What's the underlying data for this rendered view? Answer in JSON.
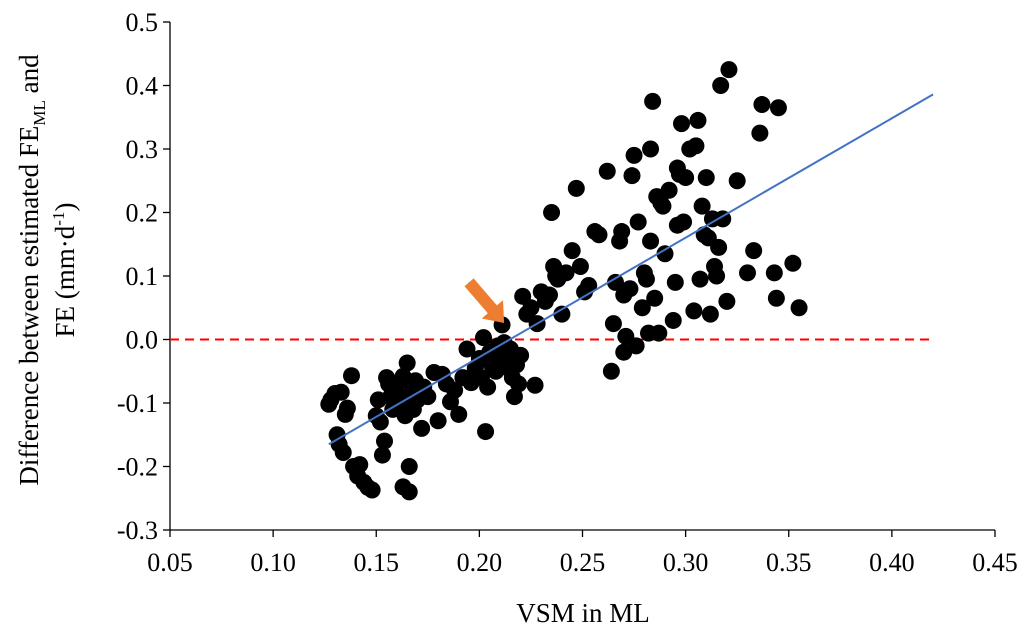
{
  "chart_data": {
    "type": "scatter",
    "xlabel": "VSM in ML",
    "ylabel_line1_parts": [
      "Difference between estimated FE",
      "ML",
      " and"
    ],
    "ylabel_line2_parts": [
      "FE (mm·d",
      "-1",
      ")"
    ],
    "xlim": [
      0.05,
      0.45
    ],
    "ylim": [
      -0.3,
      0.5
    ],
    "x_ticks": [
      0.05,
      0.1,
      0.15,
      0.2,
      0.25,
      0.3,
      0.35,
      0.4,
      0.45
    ],
    "x_tick_labels": [
      "0.05",
      "0.10",
      "0.15",
      "0.20",
      "0.25",
      "0.30",
      "0.35",
      "0.40",
      "0.45"
    ],
    "y_ticks": [
      -0.3,
      -0.2,
      -0.1,
      0.0,
      0.1,
      0.2,
      0.3,
      0.4,
      0.5
    ],
    "y_tick_labels": [
      "-0.3",
      "-0.2",
      "-0.1",
      "0.0",
      "0.1",
      "0.2",
      "0.3",
      "0.4",
      "0.5"
    ],
    "grid": false,
    "legend": "none",
    "colors": {
      "points": "#000000",
      "trend": "#4472C4",
      "zero_line": "#FF0000",
      "arrow": "#ED7D31"
    },
    "trend_line": {
      "x": [
        0.127,
        0.42
      ],
      "y": [
        -0.165,
        0.386
      ]
    },
    "reference_line": {
      "y": 0.0,
      "x": [
        0.05,
        0.42
      ],
      "style": "dashed"
    },
    "annotation_arrow": {
      "from": [
        0.195,
        0.09
      ],
      "to": [
        0.212,
        0.026
      ]
    },
    "points": [
      [
        0.127,
        -0.102
      ],
      [
        0.13,
        -0.085
      ],
      [
        0.128,
        -0.095
      ],
      [
        0.131,
        -0.15
      ],
      [
        0.132,
        -0.165
      ],
      [
        0.134,
        -0.178
      ],
      [
        0.133,
        -0.083
      ],
      [
        0.135,
        -0.118
      ],
      [
        0.136,
        -0.108
      ],
      [
        0.138,
        -0.057
      ],
      [
        0.139,
        -0.2
      ],
      [
        0.141,
        -0.215
      ],
      [
        0.142,
        -0.197
      ],
      [
        0.144,
        -0.225
      ],
      [
        0.146,
        -0.233
      ],
      [
        0.148,
        -0.237
      ],
      [
        0.15,
        -0.12
      ],
      [
        0.151,
        -0.095
      ],
      [
        0.152,
        -0.13
      ],
      [
        0.153,
        -0.182
      ],
      [
        0.154,
        -0.16
      ],
      [
        0.155,
        -0.06
      ],
      [
        0.156,
        -0.07
      ],
      [
        0.157,
        -0.09
      ],
      [
        0.158,
        -0.11
      ],
      [
        0.159,
        -0.075
      ],
      [
        0.16,
        -0.085
      ],
      [
        0.161,
        -0.1
      ],
      [
        0.162,
        -0.065
      ],
      [
        0.163,
        -0.058
      ],
      [
        0.163,
        -0.232
      ],
      [
        0.164,
        -0.12
      ],
      [
        0.165,
        -0.105
      ],
      [
        0.165,
        -0.037
      ],
      [
        0.166,
        -0.2
      ],
      [
        0.166,
        -0.24
      ],
      [
        0.167,
        -0.085
      ],
      [
        0.168,
        -0.11
      ],
      [
        0.169,
        -0.065
      ],
      [
        0.17,
        -0.095
      ],
      [
        0.172,
        -0.14
      ],
      [
        0.173,
        -0.075
      ],
      [
        0.175,
        -0.09
      ],
      [
        0.178,
        -0.052
      ],
      [
        0.18,
        -0.128
      ],
      [
        0.182,
        -0.055
      ],
      [
        0.184,
        -0.07
      ],
      [
        0.186,
        -0.098
      ],
      [
        0.188,
        -0.08
      ],
      [
        0.19,
        -0.118
      ],
      [
        0.192,
        -0.06
      ],
      [
        0.194,
        -0.015
      ],
      [
        0.196,
        -0.068
      ],
      [
        0.198,
        -0.045
      ],
      [
        0.2,
        -0.03
      ],
      [
        0.201,
        -0.06
      ],
      [
        0.202,
        0.003
      ],
      [
        0.203,
        -0.145
      ],
      [
        0.204,
        -0.075
      ],
      [
        0.205,
        -0.02
      ],
      [
        0.206,
        -0.04
      ],
      [
        0.208,
        -0.05
      ],
      [
        0.209,
        -0.01
      ],
      [
        0.21,
        -0.035
      ],
      [
        0.211,
        0.023
      ],
      [
        0.212,
        -0.005
      ],
      [
        0.213,
        -0.025
      ],
      [
        0.214,
        -0.045
      ],
      [
        0.215,
        -0.015
      ],
      [
        0.216,
        -0.06
      ],
      [
        0.217,
        -0.09
      ],
      [
        0.218,
        -0.04
      ],
      [
        0.219,
        -0.07
      ],
      [
        0.22,
        -0.025
      ],
      [
        0.221,
        0.068
      ],
      [
        0.223,
        0.04
      ],
      [
        0.225,
        0.05
      ],
      [
        0.227,
        -0.072
      ],
      [
        0.228,
        0.025
      ],
      [
        0.23,
        0.075
      ],
      [
        0.232,
        0.06
      ],
      [
        0.234,
        0.07
      ],
      [
        0.235,
        0.2
      ],
      [
        0.236,
        0.115
      ],
      [
        0.237,
        0.1
      ],
      [
        0.238,
        0.095
      ],
      [
        0.24,
        0.04
      ],
      [
        0.242,
        0.105
      ],
      [
        0.245,
        0.14
      ],
      [
        0.247,
        0.238
      ],
      [
        0.249,
        0.115
      ],
      [
        0.251,
        0.075
      ],
      [
        0.253,
        0.085
      ],
      [
        0.256,
        0.17
      ],
      [
        0.258,
        0.165
      ],
      [
        0.262,
        0.265
      ],
      [
        0.264,
        -0.05
      ],
      [
        0.265,
        0.025
      ],
      [
        0.266,
        0.09
      ],
      [
        0.268,
        0.155
      ],
      [
        0.269,
        0.17
      ],
      [
        0.27,
        0.07
      ],
      [
        0.27,
        -0.02
      ],
      [
        0.271,
        0.005
      ],
      [
        0.273,
        0.08
      ],
      [
        0.274,
        0.258
      ],
      [
        0.275,
        0.29
      ],
      [
        0.276,
        -0.01
      ],
      [
        0.277,
        0.185
      ],
      [
        0.279,
        0.05
      ],
      [
        0.28,
        0.105
      ],
      [
        0.281,
        0.095
      ],
      [
        0.282,
        0.01
      ],
      [
        0.283,
        0.3
      ],
      [
        0.283,
        0.155
      ],
      [
        0.284,
        0.375
      ],
      [
        0.285,
        0.065
      ],
      [
        0.286,
        0.225
      ],
      [
        0.287,
        0.01
      ],
      [
        0.288,
        0.215
      ],
      [
        0.289,
        0.21
      ],
      [
        0.29,
        0.135
      ],
      [
        0.292,
        0.235
      ],
      [
        0.294,
        0.03
      ],
      [
        0.295,
        0.09
      ],
      [
        0.296,
        0.27
      ],
      [
        0.296,
        0.18
      ],
      [
        0.297,
        0.26
      ],
      [
        0.298,
        0.34
      ],
      [
        0.299,
        0.185
      ],
      [
        0.3,
        0.255
      ],
      [
        0.302,
        0.3
      ],
      [
        0.304,
        0.045
      ],
      [
        0.305,
        0.305
      ],
      [
        0.306,
        0.345
      ],
      [
        0.307,
        0.095
      ],
      [
        0.308,
        0.21
      ],
      [
        0.309,
        0.165
      ],
      [
        0.31,
        0.255
      ],
      [
        0.311,
        0.16
      ],
      [
        0.312,
        0.04
      ],
      [
        0.313,
        0.19
      ],
      [
        0.314,
        0.115
      ],
      [
        0.315,
        0.1
      ],
      [
        0.316,
        0.145
      ],
      [
        0.317,
        0.4
      ],
      [
        0.318,
        0.19
      ],
      [
        0.32,
        0.06
      ],
      [
        0.321,
        0.425
      ],
      [
        0.325,
        0.25
      ],
      [
        0.33,
        0.105
      ],
      [
        0.333,
        0.14
      ],
      [
        0.336,
        0.325
      ],
      [
        0.337,
        0.37
      ],
      [
        0.343,
        0.105
      ],
      [
        0.344,
        0.065
      ],
      [
        0.345,
        0.365
      ],
      [
        0.352,
        0.12
      ],
      [
        0.355,
        0.05
      ]
    ]
  }
}
